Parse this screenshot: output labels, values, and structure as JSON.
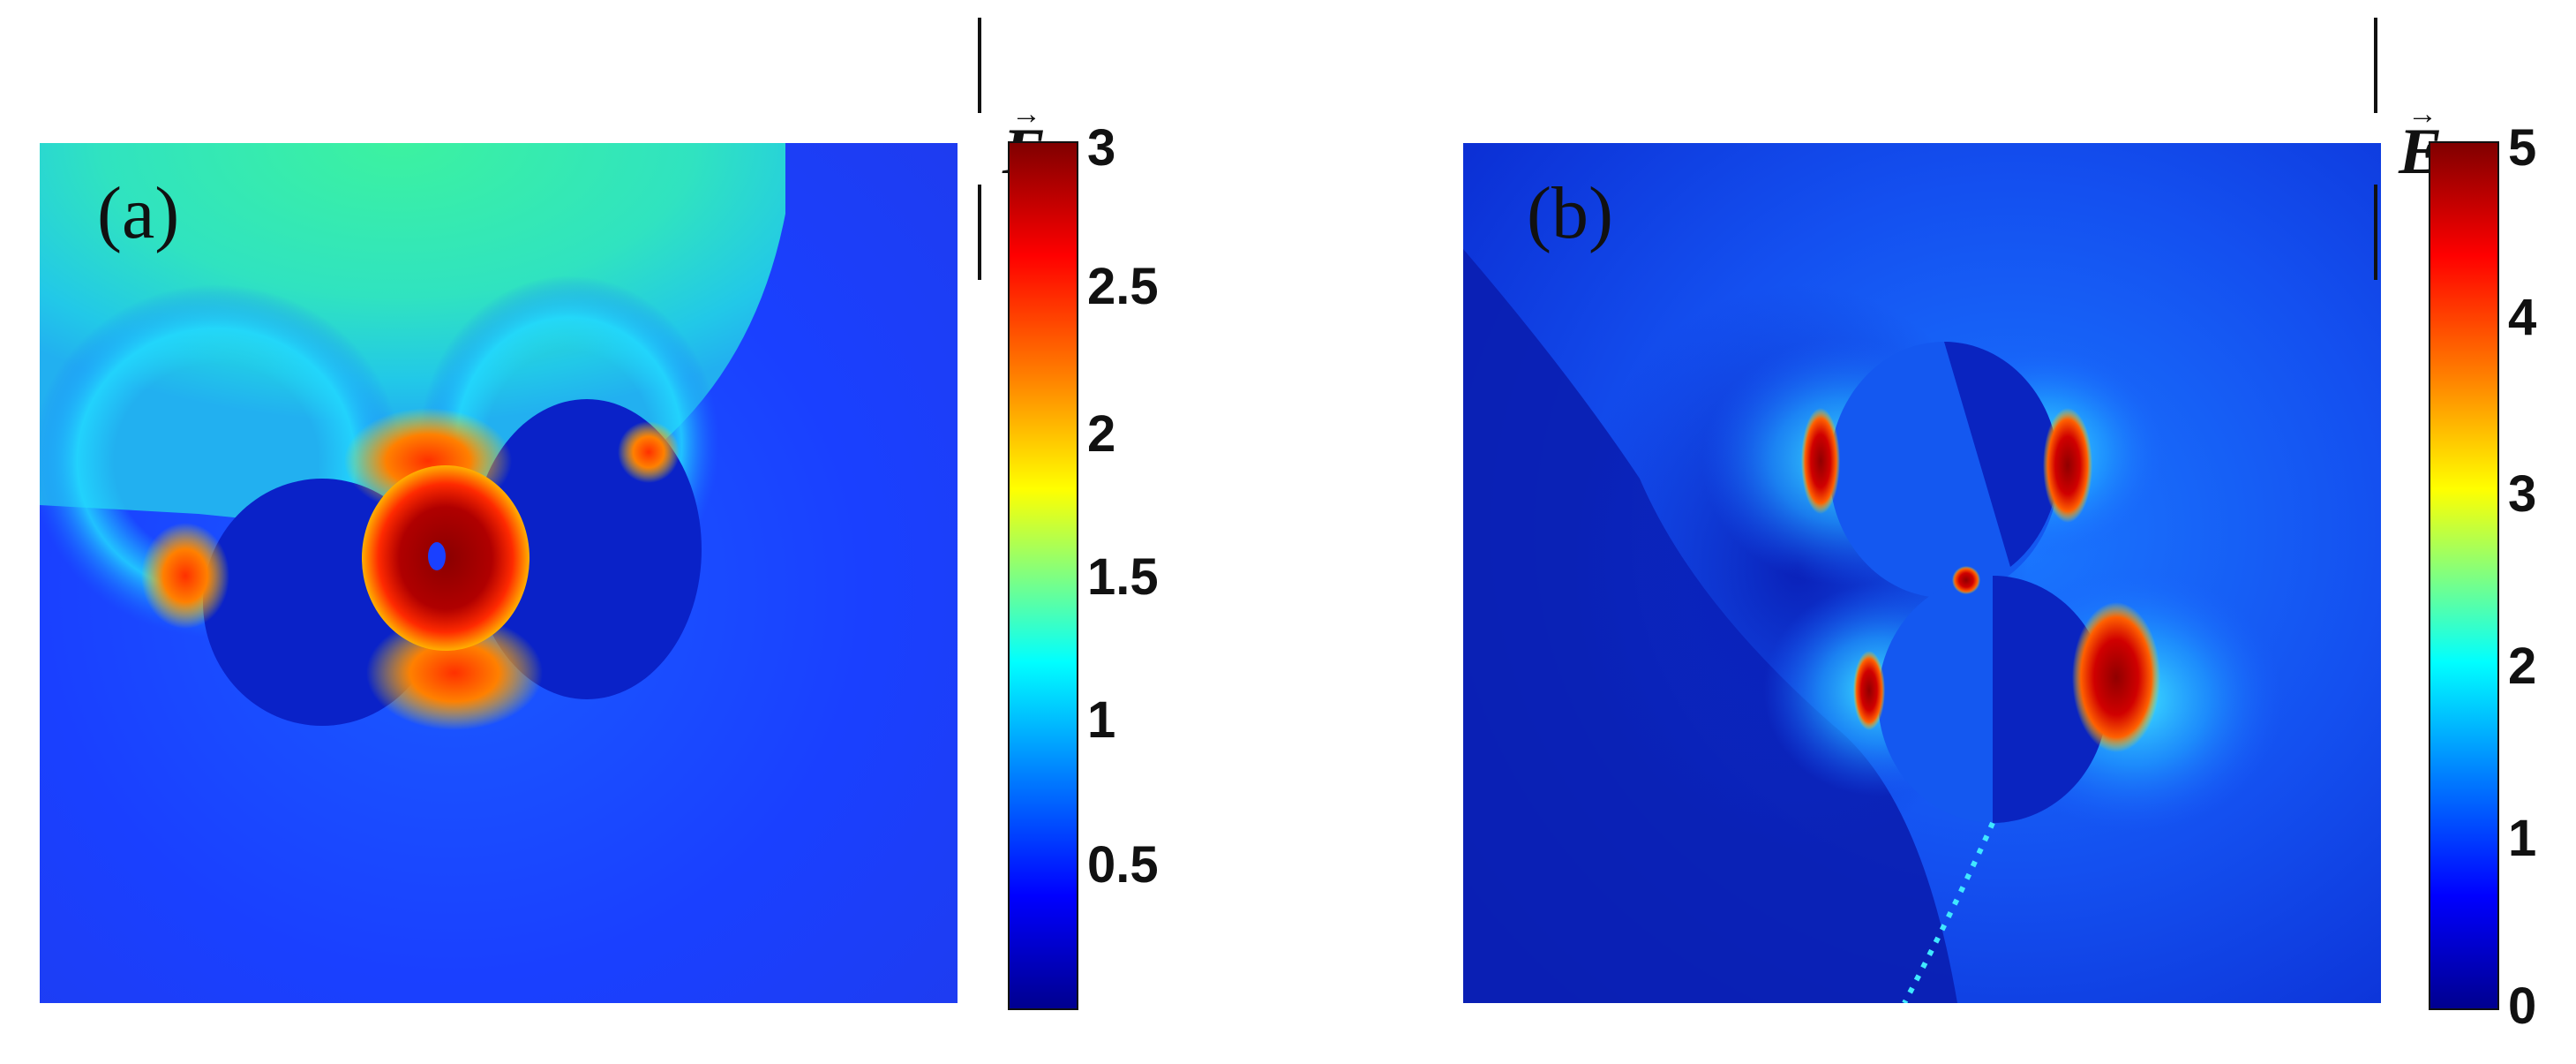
{
  "figure": {
    "panels": [
      {
        "label": "(a)",
        "colorbar_title": "E",
        "colorbar_ticks": [
          "3",
          "2.5",
          "2",
          "1.5",
          "1",
          "0.5"
        ],
        "colorbar_range": [
          0,
          3
        ]
      },
      {
        "label": "(b)",
        "colorbar_title": "E",
        "colorbar_ticks": [
          "5",
          "4",
          "3",
          "2",
          "1",
          "0"
        ],
        "colorbar_range": [
          0,
          5
        ]
      }
    ]
  },
  "chart_data": [
    {
      "type": "heatmap",
      "title": "",
      "quantity": "|E|",
      "panel_label": "(a)",
      "colormap": "jet",
      "vmin": 0,
      "vmax": 3,
      "colorbar_ticks": [
        0.5,
        1,
        1.5,
        2,
        2.5,
        3
      ],
      "description_values": {
        "background_far_field": 0.5,
        "upper_region": 1.3,
        "hotspot_between_particles": 3
      }
    },
    {
      "type": "heatmap",
      "title": "",
      "quantity": "|E|",
      "panel_label": "(b)",
      "colormap": "jet",
      "vmin": 0,
      "vmax": 5,
      "colorbar_ticks": [
        0,
        1,
        2,
        3,
        4,
        5
      ],
      "description_values": {
        "background_far_field": 0.4,
        "particle_interior": 1,
        "edge_hotspots": 5
      }
    }
  ]
}
